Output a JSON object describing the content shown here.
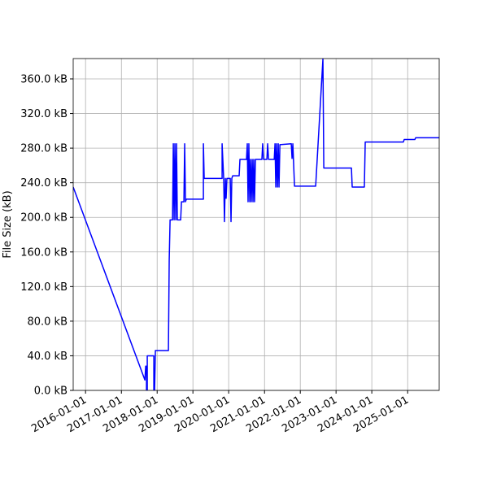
{
  "chart_data": {
    "type": "line",
    "ylabel": "File Size (kB)",
    "color": "#0000ff",
    "grid": true,
    "xlim": [
      "2015-08-28",
      "2025-11-19"
    ],
    "xticks": [
      "2016-01-01",
      "2017-01-01",
      "2018-01-01",
      "2019-01-01",
      "2020-01-01",
      "2021-01-01",
      "2022-01-01",
      "2023-01-01",
      "2024-01-01",
      "2025-01-01"
    ],
    "ylim": [
      0,
      383.5
    ],
    "yticks": [
      {
        "value": 0,
        "label": "0.0 kB"
      },
      {
        "value": 40,
        "label": "40.0 kB"
      },
      {
        "value": 80,
        "label": "80.0 kB"
      },
      {
        "value": 120,
        "label": "120.0 kB"
      },
      {
        "value": 160,
        "label": "160.0 kB"
      },
      {
        "value": 200,
        "label": "200.0 kB"
      },
      {
        "value": 240,
        "label": "240.0 kB"
      },
      {
        "value": 280,
        "label": "280.0 kB"
      },
      {
        "value": 320,
        "label": "320.0 kB"
      },
      {
        "value": 360,
        "label": "360.0 kB"
      }
    ],
    "x": [
      "2015-08-28",
      "2017-08-29",
      "2017-09-06",
      "2017-09-14",
      "2017-09-14",
      "2017-09-22",
      "2017-09-22",
      "2017-11-28",
      "2017-11-28",
      "2017-12-06",
      "2017-12-14",
      "2018-04-26",
      "2018-05-04",
      "2018-05-13",
      "2018-06-07",
      "2018-06-15",
      "2018-06-23",
      "2018-07-01",
      "2018-07-10",
      "2018-07-18",
      "2018-07-26",
      "2018-08-29",
      "2018-09-06",
      "2018-10-01",
      "2018-10-09",
      "2018-10-17",
      "2018-10-26",
      "2019-04-18",
      "2019-04-18",
      "2019-04-26",
      "2019-10-26",
      "2019-10-26",
      "2019-11-11",
      "2019-11-19",
      "2019-11-28",
      "2019-12-06",
      "2019-12-14",
      "2020-01-17",
      "2020-01-25",
      "2020-02-02",
      "2020-02-11",
      "2020-04-17",
      "2020-04-25",
      "2020-07-01",
      "2020-07-09",
      "2020-07-17",
      "2020-07-25",
      "2020-08-03",
      "2020-08-11",
      "2020-08-19",
      "2020-08-28",
      "2020-09-05",
      "2020-09-13",
      "2020-09-21",
      "2020-09-30",
      "2020-12-05",
      "2020-12-13",
      "2020-12-22",
      "2021-01-25",
      "2021-02-02",
      "2021-02-11",
      "2021-04-10",
      "2021-04-18",
      "2021-04-26",
      "2021-05-04",
      "2021-05-13",
      "2021-05-21",
      "2021-05-29",
      "2021-06-07",
      "2021-10-01",
      "2021-10-09",
      "2021-10-17",
      "2021-11-03",
      "2022-06-07",
      "2022-08-20",
      "2022-08-29",
      "2023-06-07",
      "2023-06-15",
      "2023-10-17",
      "2023-10-26",
      "2024-11-18",
      "2024-11-27",
      "2025-03-16",
      "2025-03-24",
      "2025-11-19"
    ],
    "values": [
      235,
      12,
      28,
      28,
      0,
      0,
      40,
      40,
      0,
      0,
      46,
      46,
      150,
      197,
      197,
      285,
      197,
      285,
      197,
      285,
      197,
      197,
      218,
      218,
      285,
      218,
      221,
      221,
      285,
      245,
      245,
      285,
      245,
      195,
      245,
      222,
      245,
      245,
      195,
      245,
      248,
      248,
      267,
      267,
      285,
      218,
      285,
      218,
      267,
      218,
      267,
      218,
      267,
      218,
      267,
      267,
      285,
      267,
      267,
      285,
      267,
      267,
      285,
      235,
      285,
      235,
      285,
      235,
      284,
      285,
      268,
      285,
      236,
      236,
      383,
      257,
      257,
      235,
      235,
      287,
      287,
      290,
      290,
      292,
      292
    ]
  }
}
